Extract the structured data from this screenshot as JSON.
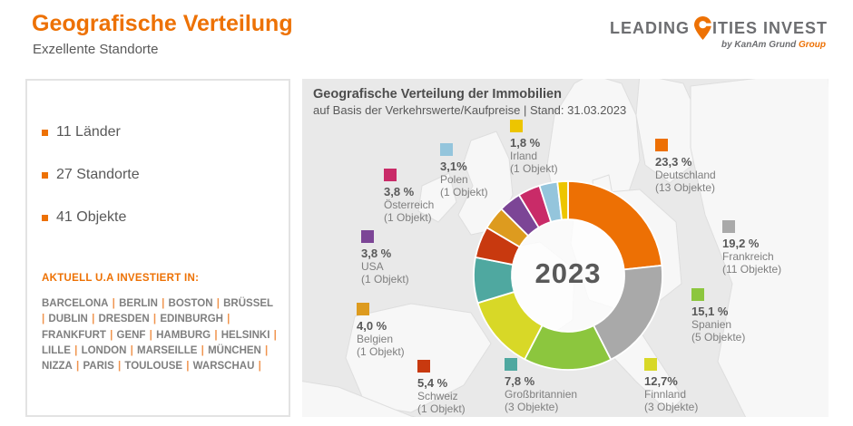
{
  "header": {
    "title": "Geografische Verteilung",
    "subtitle": "Exzellente Standorte"
  },
  "logo": {
    "text_before_pin": "LEADING",
    "text_after_pin": "ITIES INVEST",
    "tagline_prefix": "by KanAm Grund ",
    "tagline_highlight": "Group",
    "pin_color": "#ED7104"
  },
  "sidebar": {
    "facts": [
      {
        "label": "11 Länder"
      },
      {
        "label": "27 Standorte"
      },
      {
        "label": "41 Objekte"
      }
    ],
    "invested_heading": "AKTUELL U.A INVESTIERT IN:",
    "cities": [
      "BARCELONA",
      "BERLIN",
      "BOSTON",
      "BRÜSSEL",
      "DUBLIN",
      "DRESDEN",
      "EDINBURGH",
      "FRANKFURT",
      "GENF",
      "HAMBURG",
      "HELSINKI",
      "LILLE",
      "LONDON",
      "MARSEILLE",
      "MÜNCHEN",
      "NIZZA",
      "PARIS",
      "TOULOUSE",
      "WARSCHAU"
    ]
  },
  "chart": {
    "title": "Geografische Verteilung der Immobilien",
    "subtitle": "auf Basis der Verkehrswerte/Kaufpreise | Stand: 31.03.2023",
    "center_label": "2023"
  },
  "chart_data": {
    "type": "pie",
    "subtype": "donut",
    "title": "Geografische Verteilung der Immobilien",
    "subtitle": "auf Basis der Verkehrswerte/Kaufpreise | Stand: 31.03.2023",
    "center_label": "2023",
    "start_angle_deg": 0,
    "direction": "clockwise",
    "segments": [
      {
        "country": "Deutschland",
        "value": 23.3,
        "percent_label": "23,3 %",
        "objects_label": "(13 Objekte)",
        "color": "#ED7004"
      },
      {
        "country": "Frankreich",
        "value": 19.2,
        "percent_label": "19,2 %",
        "objects_label": "(11 Objekte)",
        "color": "#A9A9A9"
      },
      {
        "country": "Spanien",
        "value": 15.1,
        "percent_label": "15,1 %",
        "objects_label": "(5 Objekte)",
        "color": "#8CC63E"
      },
      {
        "country": "Finnland",
        "value": 12.7,
        "percent_label": "12,7%",
        "objects_label": "(3 Objekte)",
        "color": "#D8D827"
      },
      {
        "country": "Großbritannien",
        "value": 7.8,
        "percent_label": "7,8 %",
        "objects_label": "(3 Objekte)",
        "color": "#4FA8A0"
      },
      {
        "country": "Schweiz",
        "value": 5.4,
        "percent_label": "5,4 %",
        "objects_label": "(1 Objekt)",
        "color": "#C8390F"
      },
      {
        "country": "Belgien",
        "value": 4.0,
        "percent_label": "4,0 %",
        "objects_label": "(1 Objekt)",
        "color": "#DD9B1F"
      },
      {
        "country": "USA",
        "value": 3.8,
        "percent_label": "3,8 %",
        "objects_label": "(1 Objekt)",
        "color": "#7C4596"
      },
      {
        "country": "Österreich",
        "value": 3.8,
        "percent_label": "3,8 %",
        "objects_label": "(1 Objekt)",
        "color": "#C92B68"
      },
      {
        "country": "Polen",
        "value": 3.1,
        "percent_label": "3,1%",
        "objects_label": "(1 Objekt)",
        "color": "#94C5DC"
      },
      {
        "country": "Irland",
        "value": 1.8,
        "percent_label": "1,8 %",
        "objects_label": "(1 Objekt)",
        "color": "#EDC500"
      }
    ]
  }
}
